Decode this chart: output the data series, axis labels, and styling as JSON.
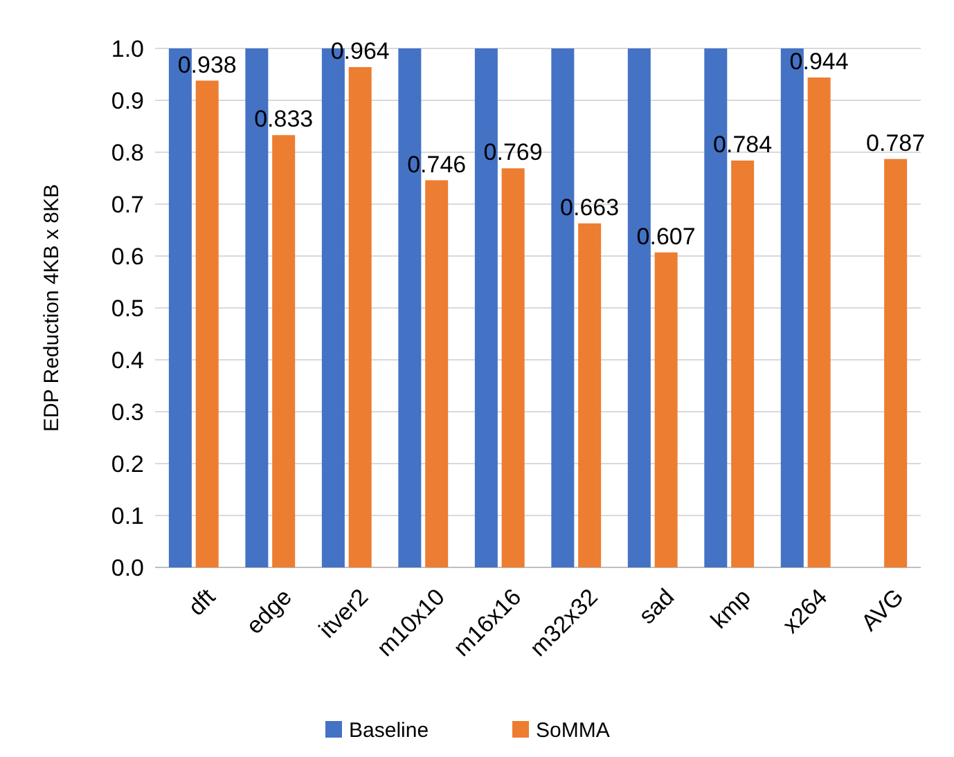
{
  "chart_data": {
    "type": "bar",
    "ylabel": "EDP Reduction 4KB x 8KB",
    "categories": [
      "dft",
      "edge",
      "itver2",
      "m10x10",
      "m16x16",
      "m32x32",
      "sad",
      "kmp",
      "x264",
      "AVG"
    ],
    "series": [
      {
        "name": "Baseline",
        "color": "#4472c4",
        "values": [
          1,
          1,
          1,
          1,
          1,
          1,
          1,
          1,
          1,
          null
        ]
      },
      {
        "name": "SoMMA",
        "color": "#ed7d31",
        "values": [
          0.938,
          0.833,
          0.964,
          0.746,
          0.769,
          0.663,
          0.607,
          0.784,
          0.944,
          0.787
        ],
        "value_labels": [
          "0.938",
          "0.833",
          "0.964",
          "0.746",
          "0.769",
          "0.663",
          "0.607",
          "0.784",
          "0.944",
          "0.787"
        ]
      }
    ],
    "ylim": [
      0,
      1
    ],
    "yticks": [
      {
        "value": 0,
        "label": "0.0"
      },
      {
        "value": 0.1,
        "label": "0.1"
      },
      {
        "value": 0.2,
        "label": "0.2"
      },
      {
        "value": 0.3,
        "label": "0.3"
      },
      {
        "value": 0.4,
        "label": "0.4"
      },
      {
        "value": 0.5,
        "label": "0.5"
      },
      {
        "value": 0.6,
        "label": "0.6"
      },
      {
        "value": 0.7,
        "label": "0.7"
      },
      {
        "value": 0.8,
        "label": "0.8"
      },
      {
        "value": 0.9,
        "label": "0.9"
      },
      {
        "value": 1,
        "label": "1.0"
      }
    ],
    "grid": "y",
    "legend": "bottom"
  }
}
